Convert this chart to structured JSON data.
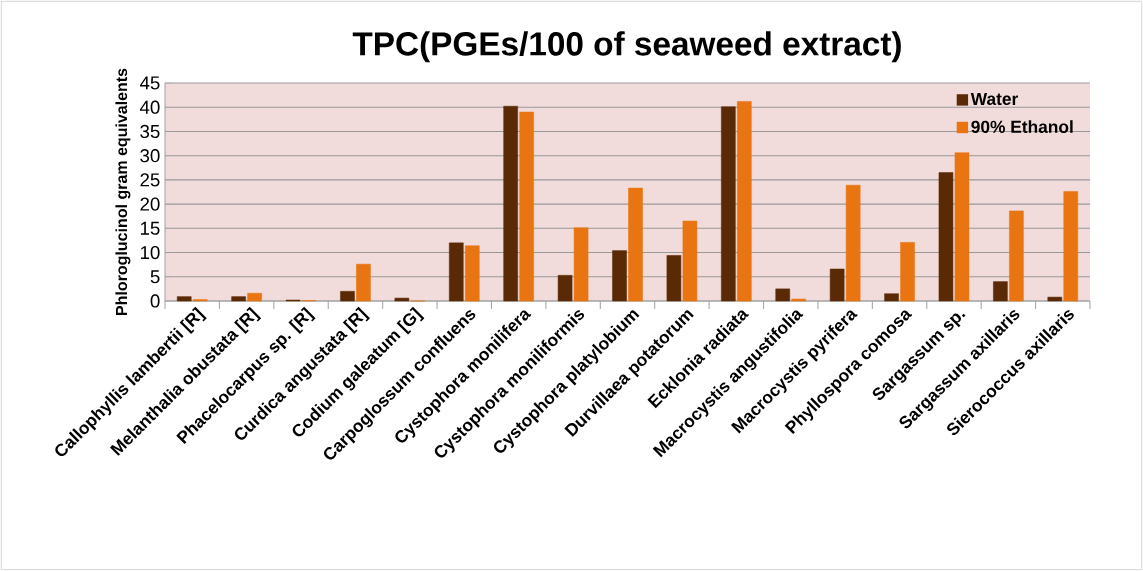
{
  "chart_data": {
    "type": "bar",
    "title": "TPC(PGEs/100 of seaweed extract)",
    "ylabel": "Phloroglucinol gram equivalents",
    "categories": [
      "Callophyllis lambertii [R]",
      "Melanthalia obustata [R]",
      "Phacelocarpus sp. [R]",
      "Curdica angustata [R]",
      "Codium galeatum [G]",
      "Carpoglossum confluens",
      "Cystophora monilifera",
      "Cystophora moniliformis",
      "Cystophora platylobium",
      "Durvillaea potatorum",
      "Ecklonia radiata",
      "Macrocystis angustifolia",
      "Macrocystis pyrifera",
      "Phyllospora comosa",
      "Sargassum sp.",
      "Sargassum axillaris",
      "Sierococcus axillaris"
    ],
    "series": [
      {
        "name": "Water",
        "color": "#5a2a06",
        "values": [
          0.9,
          0.9,
          0.2,
          2.0,
          0.6,
          12.0,
          40.2,
          5.3,
          10.4,
          9.4,
          40.1,
          2.5,
          6.6,
          1.5,
          26.5,
          4.0,
          0.8
        ]
      },
      {
        "name": "90% Ethanol",
        "color": "#e87511",
        "values": [
          0.3,
          1.6,
          0.1,
          7.6,
          0.0,
          11.4,
          39.0,
          15.1,
          23.3,
          16.5,
          41.2,
          0.4,
          23.9,
          12.1,
          30.6,
          18.6,
          22.6
        ]
      }
    ],
    "ylim": [
      0,
      45
    ],
    "yticks": [
      0,
      5,
      10,
      15,
      20,
      25,
      30,
      35,
      40,
      45
    ],
    "grid": "y",
    "legend": "top right"
  }
}
